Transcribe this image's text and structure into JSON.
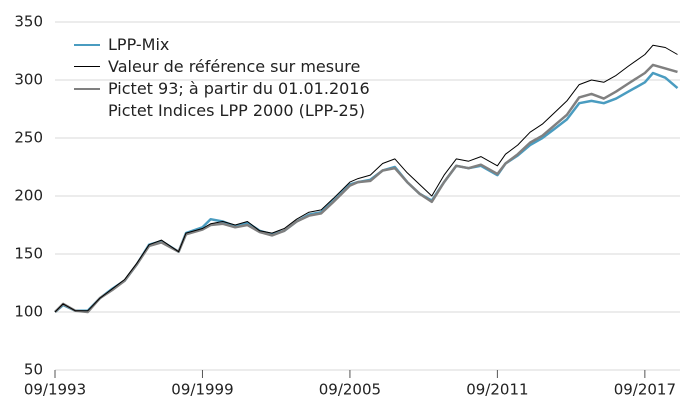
{
  "chart_data": {
    "type": "line",
    "x": [
      1993.67,
      1994.0,
      1994.5,
      1995.0,
      1995.5,
      1996.0,
      1996.5,
      1997.0,
      1997.5,
      1998.0,
      1998.7,
      1999.0,
      1999.67,
      2000.0,
      2000.5,
      2001.0,
      2001.5,
      2002.0,
      2002.5,
      2003.0,
      2003.5,
      2004.0,
      2004.5,
      2005.0,
      2005.67,
      2006.0,
      2006.5,
      2007.0,
      2007.5,
      2008.0,
      2008.5,
      2009.0,
      2009.5,
      2010.0,
      2010.5,
      2011.0,
      2011.67,
      2012.0,
      2012.5,
      2013.0,
      2013.5,
      2014.0,
      2014.5,
      2015.0,
      2015.5,
      2016.0,
      2016.5,
      2017.0,
      2017.67,
      2018.0,
      2018.5,
      2019.0
    ],
    "series": [
      {
        "name": "LPP-Mix",
        "color": "#4a9cc0",
        "width": 2.5,
        "values": [
          100,
          106,
          101,
          101,
          112,
          120,
          127,
          141,
          158,
          161,
          152,
          168,
          173,
          180,
          178,
          174,
          177,
          170,
          167,
          170,
          178,
          184,
          186,
          196,
          210,
          212,
          214,
          222,
          225,
          212,
          202,
          196,
          212,
          226,
          224,
          226,
          218,
          228,
          235,
          244,
          250,
          258,
          266,
          280,
          282,
          280,
          284,
          290,
          298,
          306,
          302,
          293
        ]
      },
      {
        "name": "Valeur de référence sur mesure",
        "color": "#000000",
        "width": 1,
        "values": [
          100,
          107,
          101,
          101,
          112,
          120,
          128,
          142,
          158,
          162,
          152,
          168,
          172,
          176,
          178,
          175,
          178,
          170,
          168,
          172,
          180,
          186,
          188,
          198,
          212,
          215,
          218,
          228,
          232,
          220,
          210,
          200,
          218,
          232,
          230,
          234,
          226,
          236,
          244,
          255,
          262,
          272,
          282,
          296,
          300,
          298,
          304,
          312,
          322,
          330,
          328,
          322
        ]
      },
      {
        "name": "Pictet 93; à partir du 01.01.2016\nPictet Indices LPP 2000 (LPP-25)",
        "color": "#808080",
        "width": 2.5,
        "values": [
          100,
          107,
          101,
          100,
          112,
          119,
          127,
          141,
          157,
          160,
          152,
          167,
          171,
          175,
          176,
          173,
          175,
          169,
          166,
          170,
          178,
          183,
          185,
          195,
          209,
          212,
          213,
          222,
          224,
          212,
          202,
          195,
          212,
          226,
          224,
          227,
          219,
          228,
          236,
          246,
          252,
          261,
          270,
          285,
          288,
          284,
          290,
          297,
          306,
          313,
          310,
          307
        ]
      }
    ],
    "xlim": [
      1993.67,
      2019.1
    ],
    "xticks": [
      {
        "value": 1993.67,
        "label": "09/1993"
      },
      {
        "value": 1999.67,
        "label": "09/1999"
      },
      {
        "value": 2005.67,
        "label": "09/2005"
      },
      {
        "value": 2011.67,
        "label": "09/2011"
      },
      {
        "value": 2017.67,
        "label": "09/2017"
      }
    ],
    "ylim": [
      50,
      350
    ],
    "yticks": [
      50,
      100,
      150,
      200,
      250,
      300,
      350
    ],
    "grid": true
  }
}
